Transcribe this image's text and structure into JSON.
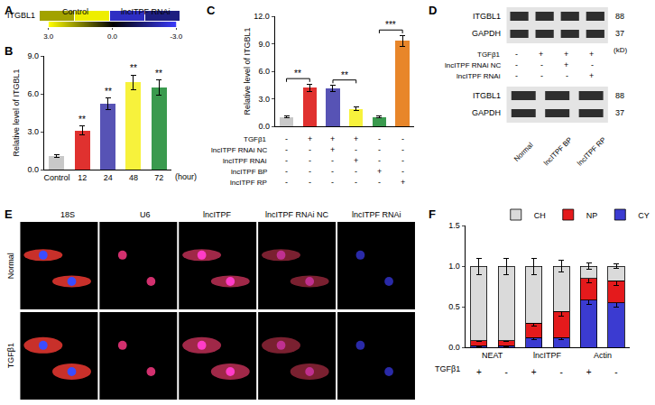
{
  "panel_labels": [
    "A",
    "B",
    "C",
    "D",
    "E",
    "F"
  ],
  "chart_data": [
    {
      "type": "heatmap",
      "rows": [
        "ITGBL1"
      ],
      "column_groups": [
        {
          "label": "Control",
          "columns": 2
        },
        {
          "label": "lncITPF RNAi",
          "columns": 2
        }
      ],
      "cells": [
        [
          1.9,
          2.8,
          -2.3,
          -1.5
        ]
      ],
      "color_range": [
        -3,
        3
      ],
      "color_ticks": [
        {
          "value": 3,
          "label": "3.0"
        },
        {
          "value": 0,
          "label": "0.0"
        },
        {
          "value": -3,
          "label": "-3.0"
        }
      ],
      "colors": [
        "#3c3cff",
        "#000000",
        "#ffff00"
      ]
    },
    {
      "type": "bar",
      "y_label": "Relative level of ITGBL1",
      "x_label": "(hour)",
      "categories": [
        "Control",
        "12",
        "24",
        "48",
        "72"
      ],
      "values": [
        1.1,
        3.1,
        5.2,
        6.9,
        6.5
      ],
      "errors": [
        0.1,
        0.35,
        0.45,
        0.6,
        0.6
      ],
      "colors": [
        "#c8c8c8",
        "#e0312f",
        "#5753b5",
        "#f7f23c",
        "#3a9a4e"
      ],
      "ylim": [
        0,
        9
      ],
      "yticks": [
        {
          "value": 0,
          "label": "0.0"
        },
        {
          "value": 3,
          "label": "3.0"
        },
        {
          "value": 6,
          "label": "6.0"
        },
        {
          "value": 9,
          "label": "9.0"
        }
      ],
      "annotations": [
        {
          "category": "12",
          "text": "**"
        },
        {
          "category": "24",
          "text": "**"
        },
        {
          "category": "48",
          "text": "**"
        },
        {
          "category": "72",
          "text": "**"
        }
      ]
    },
    {
      "type": "bar",
      "y_label": "Relative level of ITGBL1",
      "categories": [
        null,
        null,
        null,
        null,
        null,
        null
      ],
      "values": [
        1.0,
        4.2,
        4.1,
        1.9,
        1.0,
        9.3
      ],
      "errors": [
        0.1,
        0.4,
        0.35,
        0.2,
        0.1,
        0.6
      ],
      "colors": [
        "#c8c8c8",
        "#e0312f",
        "#5753b5",
        "#f7f23c",
        "#3a9a4e",
        "#e8862a"
      ],
      "ylim": [
        0,
        12
      ],
      "yticks": [
        {
          "value": 0,
          "label": "0.0"
        },
        {
          "value": 3,
          "label": "3.0"
        },
        {
          "value": 6,
          "label": "6.0"
        },
        {
          "value": 9,
          "label": "9.0"
        },
        {
          "value": 12,
          "label": "12.0"
        }
      ],
      "comparisons": [
        {
          "bars": [
            0,
            1
          ],
          "text": "**"
        },
        {
          "bars": [
            2,
            3
          ],
          "text": "**"
        },
        {
          "bars": [
            4,
            5
          ],
          "text": "***"
        }
      ],
      "conditions": [
        {
          "label": "TGFβ1",
          "marks": [
            "-",
            "+",
            "+",
            "+",
            "-",
            "-"
          ]
        },
        {
          "label": "lncITPF RNAi NC",
          "marks": [
            "-",
            "-",
            "+",
            "-",
            "-",
            "-"
          ]
        },
        {
          "label": "lncITPF RNAi",
          "marks": [
            "-",
            "-",
            "-",
            "+",
            "-",
            "-"
          ]
        },
        {
          "label": "lncITPF BP",
          "marks": [
            "-",
            "-",
            "-",
            "-",
            "+",
            "-"
          ]
        },
        {
          "label": "lncITPF RP",
          "marks": [
            "-",
            "-",
            "-",
            "-",
            "-",
            "+"
          ]
        }
      ]
    },
    {
      "type": "bar",
      "stacked": true,
      "legend": "top",
      "row_label": "TGFβ1",
      "categories": [
        "+",
        "-",
        "+",
        "-",
        "+",
        "-"
      ],
      "groups": [
        {
          "label": "NEAT",
          "size": 2
        },
        {
          "label": "lncITPF",
          "size": 2
        },
        {
          "label": "Actin",
          "size": 2
        }
      ],
      "series": [
        {
          "name": "CY",
          "color": "#3b3bd1",
          "values": [
            0.02,
            0.02,
            0.12,
            0.12,
            0.58,
            0.55
          ],
          "errors": [
            0.01,
            0.01,
            0.02,
            0.02,
            0.05,
            0.05
          ]
        },
        {
          "name": "NP",
          "color": "#e41a1c",
          "values": [
            0.06,
            0.06,
            0.18,
            0.32,
            0.27,
            0.27
          ],
          "errors": [
            0.01,
            0.01,
            0.04,
            0.06,
            0.05,
            0.06
          ]
        },
        {
          "name": "CH",
          "color": "#dadada",
          "values": [
            0.92,
            0.92,
            0.7,
            0.56,
            0.15,
            0.18
          ],
          "errors": [
            0.1,
            0.1,
            0.1,
            0.07,
            0.04,
            0.03
          ]
        }
      ],
      "ylim": [
        0,
        1.5
      ],
      "yticks": [
        {
          "value": 0,
          "label": "0.0"
        },
        {
          "value": 0.5,
          "label": "0.5"
        },
        {
          "value": 1,
          "label": "1.0"
        },
        {
          "value": 1.5,
          "label": "1.5"
        }
      ]
    }
  ],
  "western_blots": [
    {
      "bands": [
        {
          "label": "ITGBL1",
          "size": 88
        },
        {
          "label": "GAPDH",
          "size": 37
        }
      ],
      "unit": "(kD)",
      "conditions": [
        {
          "label": "TGFβ1",
          "marks": [
            "-",
            "+",
            "+",
            "+"
          ]
        },
        {
          "label": "lncITPF RNAi NC",
          "marks": [
            "-",
            "-",
            "+",
            "-"
          ]
        },
        {
          "label": "lncITPF RNAi",
          "marks": [
            "-",
            "-",
            "-",
            "+"
          ]
        }
      ]
    },
    {
      "bands": [
        {
          "label": "ITGBL1",
          "size": 88
        },
        {
          "label": "GAPDH",
          "size": 37
        }
      ],
      "lane_labels": [
        "Normal",
        "lncITPF BP",
        "lncITPF RP"
      ]
    }
  ],
  "micrographs": {
    "columns": [
      "18S",
      "U6",
      "lncITPF",
      "lncITPF RNAi NC",
      "lncITPF RNAi"
    ],
    "rows": [
      "Normal",
      "TGFβ1"
    ]
  }
}
